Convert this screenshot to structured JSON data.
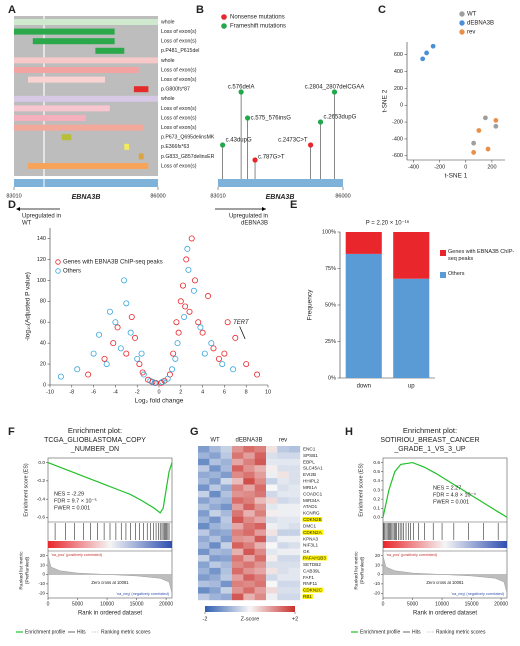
{
  "panel_labels": [
    "A",
    "B",
    "C",
    "D",
    "E",
    "F",
    "G",
    "H"
  ],
  "panel_a": {
    "gene": "EBNA3B",
    "xlim": [
      83010,
      86000
    ],
    "xticks": [
      83010,
      86000
    ],
    "rows": [
      {
        "label": "whole",
        "color": "#cfe9cf",
        "start": 83010,
        "end": 86000
      },
      {
        "label": "Loss of exon(s)",
        "color": "#2aa84a",
        "start": 83010,
        "end": 85100
      },
      {
        "label": "Loss of exon(s)",
        "color": "#2aa84a",
        "start": 83400,
        "end": 85100
      },
      {
        "label": "p.P481_P615del",
        "color": "#2aa84a",
        "start": 84700,
        "end": 85300
      },
      {
        "label": "whole",
        "color": "#f6c8c8",
        "start": 83010,
        "end": 86000
      },
      {
        "label": "Loss of exon(s)",
        "color": "#f4a3a3",
        "start": 83010,
        "end": 85600
      },
      {
        "label": "Loss of exon(s)",
        "color": "#f9d2d2",
        "start": 83300,
        "end": 84900
      },
      {
        "label": "p.G800fs*87",
        "color": "#e32b2b",
        "start": 85500,
        "end": 85800
      },
      {
        "label": "whole",
        "color": "#d7c8e6",
        "start": 83010,
        "end": 86000
      },
      {
        "label": "Loss of exon(s)",
        "color": "#f7c6cf",
        "start": 83010,
        "end": 85000
      },
      {
        "label": "Loss of exon(s)",
        "color": "#f4b0bc",
        "start": 83010,
        "end": 84500
      },
      {
        "label": "Loss of exon(s)",
        "color": "#f3a89c",
        "start": 83010,
        "end": 85700
      },
      {
        "label": "p.P673_Q695delinsMK",
        "color": "#b7be3a",
        "start": 84000,
        "end": 84200
      },
      {
        "label": "p.E366fs*63",
        "color": "#f2ec5a",
        "start": 85300,
        "end": 85400
      },
      {
        "label": "p.G833_G857delinsER",
        "color": "#d9a441",
        "start": 85600,
        "end": 85700
      },
      {
        "label": "Loss of exon(s)",
        "color": "#f7a45a",
        "start": 83300,
        "end": 85800
      }
    ]
  },
  "panel_b": {
    "gene": "EBNA3B",
    "xlim": [
      83010,
      86000
    ],
    "xticks": [
      83010,
      86000
    ],
    "legend": [
      {
        "name": "Nonsense mutations",
        "color": "#e8262b"
      },
      {
        "name": "Frameshift mutations",
        "color": "#22a84a"
      }
    ],
    "mutations": [
      {
        "label": "c.576delA",
        "color": "#22a84a",
        "position": 83563
      },
      {
        "label": "c.575_576insG",
        "color": "#22a84a",
        "position": 83718
      },
      {
        "label": "c.43dupG",
        "color": "#22a84a",
        "position": 83121
      },
      {
        "label": "c.787G>T",
        "color": "#e8262b",
        "position": 83896
      },
      {
        "label": "c.2473C>T",
        "color": "#e8262b",
        "position": 85225
      },
      {
        "label": "c.2653dupG",
        "color": "#22a84a",
        "position": 85463
      },
      {
        "label": "c.2804_2807delCGAA",
        "color": "#22a84a",
        "position": 85796
      }
    ]
  },
  "panel_g": {
    "groups": [
      "WT",
      "dEBNA3B",
      "rev"
    ],
    "zlim": [
      -2,
      2
    ],
    "cbar_ticks": [
      -2,
      {
        "value": 2,
        "label": "+2"
      }
    ],
    "cbar_label": "Z-score",
    "genes": [
      {
        "name": "ENC1"
      },
      {
        "name": "SPSB1"
      },
      {
        "name": "EBPL"
      },
      {
        "name": "SLC45A1"
      },
      {
        "name": "EVI2B"
      },
      {
        "name": "HHIPL2"
      },
      {
        "name": "MRI1A"
      },
      {
        "name": "COADC1"
      },
      {
        "name": "MIR34A"
      },
      {
        "name": "ATAD1"
      },
      {
        "name": "KCNRG"
      },
      {
        "name": "CDKN2B",
        "highlight": true
      },
      {
        "name": "DMC1"
      },
      {
        "name": "CDKN2A",
        "highlight": true
      },
      {
        "name": "KPNA3"
      },
      {
        "name": "NIF3L1"
      },
      {
        "name": "GK"
      },
      {
        "name": "PAFAH1B3",
        "highlight": true
      },
      {
        "name": "SETDB2"
      },
      {
        "name": "CAB39L"
      },
      {
        "name": "FAF1"
      },
      {
        "name": "RNF11"
      },
      {
        "name": "CDKN2C",
        "highlight": true
      },
      {
        "name": "RB1",
        "highlight": true
      }
    ],
    "values": [
      [
        -1.2,
        -0.8,
        -0.5,
        1.0,
        1.4,
        1.2,
        0.2,
        -0.6,
        -0.7
      ],
      [
        -0.9,
        -1.1,
        -0.6,
        1.3,
        0.9,
        1.5,
        -0.3,
        -0.4,
        -0.4
      ],
      [
        -1.4,
        -0.7,
        -0.9,
        0.8,
        1.2,
        1.6,
        -0.2,
        -0.2,
        -0.2
      ],
      [
        -0.6,
        -1.3,
        -0.8,
        1.5,
        1.0,
        0.7,
        0.1,
        -0.3,
        -0.3
      ],
      [
        -1.0,
        -0.9,
        -1.2,
        1.1,
        1.3,
        0.9,
        -0.1,
        0.2,
        -0.3
      ],
      [
        -0.8,
        -1.2,
        -0.4,
        0.6,
        1.7,
        1.1,
        -0.5,
        -0.2,
        -0.3
      ],
      [
        -1.3,
        -0.6,
        -1.0,
        1.2,
        0.8,
        1.4,
        0.0,
        -0.3,
        -0.2
      ],
      [
        -0.5,
        -1.4,
        -0.7,
        1.0,
        1.1,
        1.3,
        -0.4,
        -0.2,
        -0.2
      ],
      [
        -1.1,
        -0.8,
        -0.9,
        1.4,
        1.2,
        0.6,
        0.3,
        -0.4,
        -0.3
      ],
      [
        -0.7,
        -1.0,
        -1.3,
        0.9,
        1.5,
        1.0,
        -0.2,
        -0.1,
        -0.1
      ],
      [
        -1.2,
        -0.5,
        -0.8,
        1.3,
        0.7,
        1.2,
        0.1,
        -0.1,
        -0.1
      ],
      [
        -0.9,
        -1.3,
        -0.6,
        1.6,
        1.1,
        0.8,
        -0.3,
        -0.2,
        -0.2
      ],
      [
        -1.4,
        -0.9,
        -0.7,
        0.8,
        1.3,
        1.5,
        -0.1,
        -0.2,
        -0.3
      ],
      [
        -0.6,
        -1.1,
        -1.0,
        1.2,
        1.4,
        0.9,
        0.2,
        -0.5,
        -0.5
      ],
      [
        -1.0,
        -0.7,
        -1.2,
        1.0,
        0.9,
        1.6,
        -0.4,
        -0.1,
        -0.1
      ],
      [
        -0.8,
        -1.4,
        -0.5,
        1.5,
        1.2,
        0.7,
        0.0,
        -0.4,
        -0.3
      ],
      [
        -1.3,
        -0.8,
        -0.9,
        0.7,
        1.6,
        1.1,
        -0.2,
        -0.1,
        -0.1
      ],
      [
        -0.5,
        -1.2,
        -1.1,
        1.3,
        0.8,
        1.4,
        0.1,
        -0.4,
        -0.4
      ],
      [
        -1.1,
        -0.6,
        -0.8,
        1.1,
        1.3,
        1.0,
        -0.3,
        -0.3,
        -0.3
      ],
      [
        -0.9,
        -1.3,
        -0.7,
        1.4,
        1.0,
        0.8,
        0.2,
        -0.3,
        -0.2
      ],
      [
        -1.2,
        -1.0,
        -0.6,
        0.9,
        1.5,
        1.2,
        -0.4,
        -0.2,
        -0.2
      ],
      [
        -0.7,
        -0.8,
        -1.3,
        1.2,
        1.1,
        1.3,
        0.0,
        -0.4,
        -0.4
      ],
      [
        -1.4,
        -1.1,
        -0.5,
        1.0,
        1.4,
        0.9,
        0.3,
        -0.3,
        -0.3
      ],
      [
        -0.6,
        -0.9,
        -1.0,
        1.6,
        0.7,
        1.1,
        -0.1,
        -0.4,
        -0.4
      ]
    ]
  },
  "chart_data": [
    {
      "type": "scatter",
      "marker": "filled",
      "legend": "upper right",
      "xlabel": "t-SNE 1",
      "ylabel": "t-SNE 2",
      "xlim": [
        -450,
        300
      ],
      "xticks": [
        -400,
        -200,
        0,
        200
      ],
      "ylim": [
        -650,
        750
      ],
      "yticks": [
        600,
        400,
        200,
        0,
        -200,
        -400,
        -600
      ],
      "series": [
        {
          "name": "WT",
          "color": "#9e9e9e",
          "x": [
            150,
            230,
            60
          ],
          "y": [
            -150,
            -250,
            -450
          ]
        },
        {
          "name": "dEBNA3B",
          "color": "#4a90d9",
          "x": [
            -330,
            -300,
            -250
          ],
          "y": [
            550,
            620,
            700
          ]
        },
        {
          "name": "rev",
          "color": "#e8904a",
          "x": [
            100,
            230,
            170,
            60
          ],
          "y": [
            -300,
            -180,
            -520,
            -560
          ]
        }
      ]
    },
    {
      "type": "scatter",
      "marker": "open",
      "legend": "upper left",
      "xlabel": "Log₂ fold change",
      "ylabel": "-log₁₀(Adjusted P value)",
      "xlim": [
        -10,
        10
      ],
      "xticks": [
        -10,
        -8,
        -6,
        -4,
        -2,
        0,
        2,
        4,
        6,
        8,
        10
      ],
      "ylim": [
        0,
        150
      ],
      "yticks": [
        0,
        20,
        40,
        60,
        80,
        100,
        120,
        140
      ],
      "annotations": [
        {
          "lines": [
            "Upregulated in",
            "WT"
          ]
        },
        {
          "lines": [
            "Upregulated in",
            "dEBNA3B"
          ]
        },
        {
          "text": "TERT"
        }
      ],
      "series": [
        {
          "name": "Genes with EBNA3B ChIP-seq peaks",
          "color": "#e8262b",
          "x": [
            -6.5,
            -5,
            -4.2,
            -3.8,
            -3,
            -2.5,
            -2.2,
            -1.8,
            -1.5,
            -1,
            -0.6,
            0.5,
            1,
            1.3,
            1.6,
            2,
            2.2,
            2.5,
            2.8,
            3,
            3.3,
            3.6,
            4,
            4.5,
            5,
            5.5,
            6,
            6.3,
            7,
            8,
            9,
            0.2,
            -0.3,
            1.8,
            2.4
          ],
          "y": [
            10,
            25,
            40,
            55,
            30,
            65,
            45,
            20,
            12,
            5,
            3,
            4,
            10,
            30,
            60,
            80,
            95,
            120,
            70,
            140,
            100,
            60,
            50,
            85,
            35,
            25,
            30,
            60,
            45,
            20,
            10,
            2,
            2,
            50,
            75
          ]
        },
        {
          "name": "Others",
          "color": "#3aa6dd",
          "x": [
            -9,
            -7.5,
            -6,
            -5.5,
            -4.8,
            -4,
            -3.5,
            -3,
            -2.6,
            -2,
            -1.4,
            -0.8,
            -0.4,
            0.3,
            0.8,
            1.2,
            1.7,
            2.3,
            2.7,
            3.2,
            3.8,
            4.2,
            4.8,
            5.8,
            6.8,
            -3.2,
            -4.5,
            1.5,
            2.6,
            -1.6
          ],
          "y": [
            8,
            15,
            30,
            48,
            20,
            60,
            35,
            78,
            50,
            25,
            10,
            4,
            2,
            3,
            6,
            15,
            40,
            65,
            110,
            90,
            55,
            30,
            40,
            20,
            15,
            100,
            70,
            25,
            130,
            30
          ]
        }
      ]
    },
    {
      "type": "bar",
      "stacked": true,
      "ylabel": "Frequency",
      "annotation": "P = 2.20 × 10⁻¹⁶",
      "categories": [
        "down",
        "up"
      ],
      "ylim": [
        0,
        100
      ],
      "yticks": [
        {
          "value": 0,
          "label": "0%"
        },
        {
          "value": 25,
          "label": "25%"
        },
        {
          "value": 50,
          "label": "50%"
        },
        {
          "value": 75,
          "label": "75%"
        },
        {
          "value": 100,
          "label": "100%"
        }
      ],
      "series": [
        {
          "name": "Others",
          "color": "#5b9bd5",
          "values": [
            85,
            68
          ]
        },
        {
          "name": "Genes with EBNA3B ChIP-seq peaks",
          "color": "#e8262b",
          "values": [
            15,
            32
          ]
        }
      ]
    },
    {
      "type": "line",
      "title_lines": [
        "Enrichment plot:",
        "TCGA_GLIOBLASTOMA_COPY",
        "_NUMBER_DN"
      ],
      "stats": [
        "NES = -2.29",
        "FDR = 9.7 × 10⁻⁵",
        "FWER = 0.001"
      ],
      "xlabel": "Rank in ordered dataset",
      "ylabel": "Enrichment score (ES)",
      "y2label_lines": [
        "Ranked list metric",
        "(PreRanked)"
      ],
      "annotations": [
        "Zero cross at 10081",
        "'na_pos' (positively correlated)",
        "'na_neg' (negatively correlated)"
      ],
      "xlim": [
        0,
        21000
      ],
      "xticks": [
        0,
        5000,
        10000,
        15000,
        20000
      ],
      "ylim": [
        -0.65,
        0.05
      ],
      "yticks": [
        {
          "value": 0,
          "label": "0.0"
        },
        -0.2,
        -0.4,
        -0.6
      ],
      "y2lim": [
        -25,
        25
      ],
      "y2ticks": [
        20,
        10,
        0,
        -10,
        -20
      ],
      "series": [
        {
          "name": "Enrichment profile",
          "color": "#22c02a",
          "x": [
            0,
            2000,
            4000,
            6000,
            8000,
            10000,
            12000,
            14000,
            16000,
            18000,
            19000,
            19500,
            20000,
            20500,
            21000
          ],
          "values": [
            0,
            -0.05,
            -0.1,
            -0.15,
            -0.2,
            -0.25,
            -0.3,
            -0.35,
            -0.42,
            -0.5,
            -0.55,
            -0.5,
            -0.3,
            -0.1,
            0
          ]
        },
        {
          "name": "Hits",
          "color": "#000000",
          "x": [
            1200,
            3000,
            4500,
            6000,
            7200,
            8400,
            9500,
            10500,
            11500,
            12400,
            13200,
            14000,
            14800,
            15500,
            16200,
            16800,
            17400,
            17900,
            18300,
            18700,
            19000,
            19300,
            19500,
            19700,
            19900,
            20100,
            20300,
            20500
          ]
        },
        {
          "name": "Ranking metric scores",
          "color": "#9e9e9e",
          "axis": "y2",
          "x": [
            0,
            500,
            2000,
            5000,
            10081,
            15000,
            19000,
            20500,
            21000
          ],
          "values": [
            20,
            8,
            4,
            1.5,
            0,
            -1.5,
            -4,
            -8,
            -20
          ]
        }
      ]
    },
    {
      "type": "line",
      "title_lines": [
        "Enrichment plot:",
        "SOTIRIOU_BREAST_CANCER",
        "_GRADE_1_VS_3_UP"
      ],
      "stats": [
        "NES = 2.27",
        "FDR = 4.8 × 10⁻⁴",
        "FWER = 0.001"
      ],
      "xlabel": "Rank in ordered dataset",
      "ylabel": "Enrichment score (ES)",
      "y2label_lines": [
        "Ranked list metric",
        "(PreRanked)"
      ],
      "annotations": [
        "Zero cross at 10081",
        "'na_pos' (positively correlated)",
        "'na_neg' (negatively correlated)"
      ],
      "xlim": [
        0,
        21000
      ],
      "xticks": [
        0,
        5000,
        10000,
        15000,
        20000
      ],
      "ylim": [
        -0.05,
        0.65
      ],
      "yticks": [
        {
          "value": 0,
          "label": "0.0"
        },
        0.1,
        0.2,
        0.3,
        0.4,
        0.5,
        0.6
      ],
      "y2lim": [
        -25,
        25
      ],
      "y2ticks": [
        20,
        10,
        0,
        -10,
        -20
      ],
      "series": [
        {
          "name": "Enrichment profile",
          "color": "#22c02a",
          "x": [
            0,
            1000,
            2000,
            3000,
            5000,
            7000,
            9000,
            11000,
            13000,
            15000,
            17000,
            18500,
            19500,
            20300,
            21000
          ],
          "values": [
            0,
            0.3,
            0.5,
            0.58,
            0.6,
            0.55,
            0.48,
            0.4,
            0.32,
            0.24,
            0.16,
            0.1,
            0.06,
            0.03,
            0
          ]
        },
        {
          "name": "Hits",
          "color": "#000000",
          "x": [
            100,
            300,
            500,
            700,
            900,
            1100,
            1300,
            1500,
            1700,
            1900,
            2100,
            2300,
            2600,
            2900,
            3200,
            3500,
            3900,
            4300,
            4700,
            5200,
            6000,
            7000,
            8500,
            10000,
            12000,
            14500,
            17000,
            19500
          ]
        },
        {
          "name": "Ranking metric scores",
          "color": "#9e9e9e",
          "axis": "y2",
          "x": [
            0,
            500,
            2000,
            5000,
            10081,
            15000,
            19000,
            20500,
            21000
          ],
          "values": [
            20,
            8,
            4,
            1.5,
            0,
            -1.5,
            -4,
            -8,
            -20
          ]
        }
      ]
    }
  ]
}
